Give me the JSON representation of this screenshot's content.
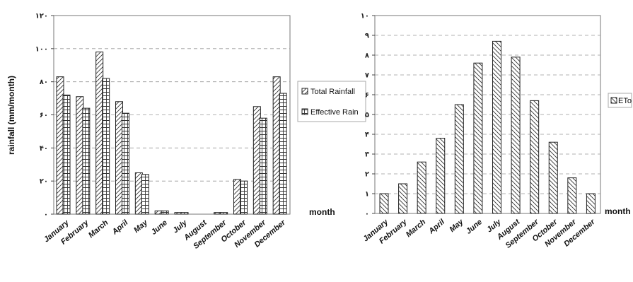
{
  "chart_data": [
    {
      "type": "bar",
      "title": "",
      "xlabel": "month",
      "ylabel": "rainfall (mm/month)",
      "ylim": [
        0,
        120
      ],
      "yticks": [
        "۰",
        "۲۰",
        "۴۰",
        "۶۰",
        "۸۰",
        "۱۰۰",
        "۱۲۰"
      ],
      "grid": true,
      "legend_position": "right",
      "categories": [
        "January",
        "February",
        "March",
        "April",
        "May",
        "June",
        "July",
        "August",
        "September",
        "October",
        "November",
        "December"
      ],
      "series": [
        {
          "name": "Total Rainfall",
          "pattern": "diagonal",
          "values": [
            83,
            71,
            98,
            68,
            25,
            2,
            1,
            0,
            1,
            21,
            65,
            83
          ]
        },
        {
          "name": "Effective Rain",
          "pattern": "grid",
          "values": [
            72,
            64,
            82,
            61,
            24,
            2,
            1,
            0,
            1,
            20,
            58,
            73
          ]
        }
      ]
    },
    {
      "type": "bar",
      "title": "",
      "xlabel": "month",
      "ylabel": "",
      "ylim": [
        0,
        10
      ],
      "yticks": [
        "۰",
        "۱",
        "۲",
        "۳",
        "۴",
        "۵",
        "۶",
        "۷",
        "۸",
        "۹",
        "۱۰"
      ],
      "grid": true,
      "legend_position": "right",
      "categories": [
        "January",
        "February",
        "March",
        "April",
        "May",
        "June",
        "July",
        "August",
        "September",
        "October",
        "November",
        "December"
      ],
      "series": [
        {
          "name": "ETo",
          "pattern": "reverse-diagonal",
          "values": [
            1.0,
            1.5,
            2.6,
            3.8,
            5.5,
            7.6,
            8.7,
            7.9,
            5.7,
            3.6,
            1.8,
            1.0
          ]
        }
      ]
    }
  ]
}
